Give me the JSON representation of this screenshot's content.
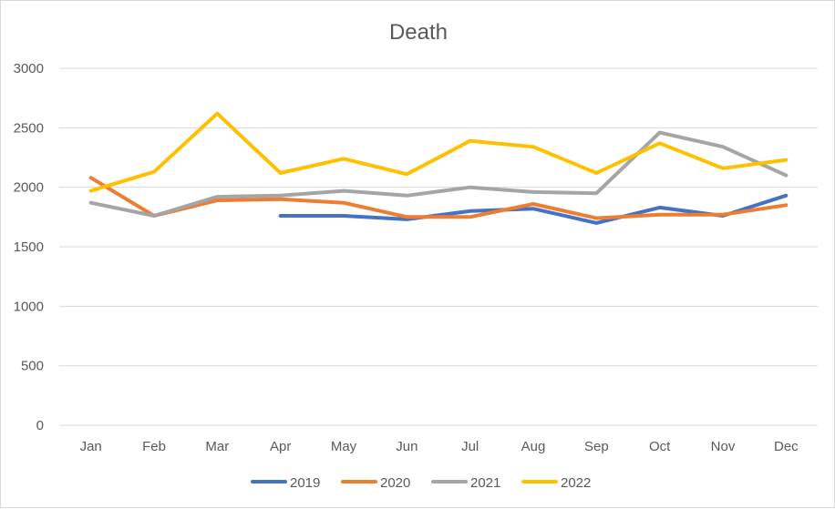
{
  "chart_data": {
    "type": "line",
    "title": "Death",
    "xlabel": "",
    "ylabel": "",
    "categories": [
      "Jan",
      "Feb",
      "Mar",
      "Apr",
      "May",
      "Jun",
      "Jul",
      "Aug",
      "Sep",
      "Oct",
      "Nov",
      "Dec"
    ],
    "ylim": [
      0,
      3000
    ],
    "yticks": [
      0,
      500,
      1000,
      1500,
      2000,
      2500,
      3000
    ],
    "grid": true,
    "legend_position": "bottom",
    "series": [
      {
        "name": "2019",
        "color": "#4472c4",
        "values": [
          null,
          null,
          null,
          1760,
          1760,
          1730,
          1800,
          1820,
          1700,
          1830,
          1760,
          1930
        ]
      },
      {
        "name": "2020",
        "color": "#ed7d31",
        "values": [
          2080,
          1760,
          1890,
          1900,
          1870,
          1750,
          1750,
          1860,
          1740,
          1770,
          1770,
          1850
        ]
      },
      {
        "name": "2021",
        "color": "#a5a5a5",
        "values": [
          1870,
          1760,
          1920,
          1930,
          1970,
          1930,
          2000,
          1960,
          1950,
          2460,
          2340,
          2100
        ]
      },
      {
        "name": "2022",
        "color": "#ffc000",
        "values": [
          1970,
          2130,
          2620,
          2120,
          2240,
          2110,
          2390,
          2340,
          2120,
          2370,
          2160,
          2230
        ]
      }
    ]
  }
}
